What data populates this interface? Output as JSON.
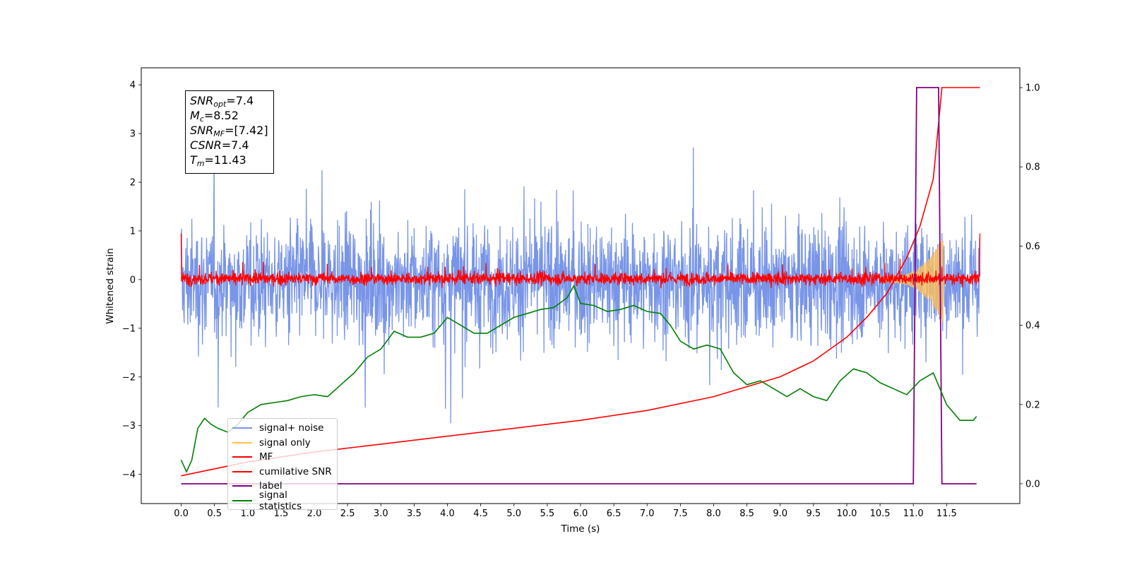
{
  "chart_data": {
    "type": "line",
    "title": "",
    "xlabel": "Time (s)",
    "ylabel": "Whitened strain",
    "y2label": "",
    "xlim": [
      -0.6,
      12.6
    ],
    "ylim": [
      -4.6,
      4.35
    ],
    "y2lim": [
      -0.05,
      1.05
    ],
    "x_ticks": [
      "0.0",
      "0.5",
      "1.0",
      "1.5",
      "2.0",
      "2.5",
      "3.0",
      "3.5",
      "4.0",
      "4.5",
      "5.0",
      "5.5",
      "6.0",
      "6.5",
      "7.0",
      "7.5",
      "8.0",
      "8.5",
      "9.0",
      "9.5",
      "10.0",
      "10.5",
      "11.0",
      "11.5"
    ],
    "x_tick_values": [
      0.0,
      0.5,
      1.0,
      1.5,
      2.0,
      2.5,
      3.0,
      3.5,
      4.0,
      4.5,
      5.0,
      5.5,
      6.0,
      6.5,
      7.0,
      7.5,
      8.0,
      8.5,
      9.0,
      9.5,
      10.0,
      10.5,
      11.0,
      11.5
    ],
    "y_ticks": [
      "4",
      "3",
      "2",
      "1",
      "0",
      "−1",
      "−2",
      "−3",
      "−4"
    ],
    "y_tick_values": [
      4,
      3,
      2,
      1,
      0,
      -1,
      -2,
      -3,
      -4
    ],
    "y2_ticks": [
      "1.0",
      "0.8",
      "0.6",
      "0.4",
      "0.2",
      "0.0"
    ],
    "y2_tick_values": [
      1.0,
      0.8,
      0.6,
      0.4,
      0.2,
      0.0
    ],
    "grid": false,
    "legend_position": "lower-left",
    "annotation": [
      {
        "sym": "SNR",
        "sub": "opt",
        "val": "=7.4"
      },
      {
        "sym": "M",
        "sub": "c",
        "val": "=8.52"
      },
      {
        "sym": "SNR",
        "sub": "MF",
        "val": "=[7.42]"
      },
      {
        "sym": "CSNR",
        "sub": "",
        "val": "=7.4"
      },
      {
        "sym": "T",
        "sub": "m",
        "val": "=11.43"
      }
    ],
    "series": [
      {
        "name": "signal+ noise",
        "color": "#7895e8",
        "axis": "left",
        "description_range": [
          -3.7,
          3.95
        ],
        "x_range": [
          0.0,
          12.0
        ]
      },
      {
        "name": "signal only",
        "color": "#ffbf58",
        "axis": "left",
        "x_range": [
          10.5,
          11.45
        ],
        "peak_amplitude": 0.85
      },
      {
        "name": "MF",
        "color": "#ff0000",
        "axis": "left",
        "x_range": [
          0.0,
          12.0
        ],
        "typical_range": [
          -0.2,
          0.45
        ]
      },
      {
        "name": "cumilative SNR",
        "color": "#ff0000",
        "axis": "right",
        "x": [
          0.0,
          1.0,
          2.0,
          3.0,
          4.0,
          5.0,
          6.0,
          7.0,
          8.0,
          8.5,
          9.0,
          9.5,
          10.0,
          10.3,
          10.6,
          10.9,
          11.1,
          11.3,
          11.43,
          12.0
        ],
        "y": [
          0.02,
          0.055,
          0.08,
          0.1,
          0.12,
          0.14,
          0.16,
          0.185,
          0.22,
          0.245,
          0.27,
          0.31,
          0.37,
          0.42,
          0.48,
          0.57,
          0.65,
          0.77,
          1.0,
          1.0
        ]
      },
      {
        "name": "label",
        "color": "#800080",
        "axis": "right",
        "x": [
          0.0,
          11.0,
          11.05,
          11.38,
          11.43,
          11.95
        ],
        "y": [
          0.0,
          0.0,
          1.0,
          1.0,
          0.0,
          0.0
        ]
      },
      {
        "name": "signal statistics",
        "color": "#008000",
        "axis": "right",
        "x": [
          0.0,
          0.08,
          0.16,
          0.25,
          0.35,
          0.45,
          0.55,
          0.7,
          0.85,
          1.0,
          1.2,
          1.4,
          1.6,
          1.8,
          2.0,
          2.2,
          2.4,
          2.6,
          2.8,
          3.0,
          3.2,
          3.4,
          3.6,
          3.8,
          4.0,
          4.1,
          4.2,
          4.4,
          4.6,
          4.8,
          5.0,
          5.2,
          5.4,
          5.6,
          5.8,
          5.9,
          6.0,
          6.2,
          6.4,
          6.6,
          6.8,
          7.0,
          7.2,
          7.35,
          7.5,
          7.7,
          7.9,
          8.1,
          8.3,
          8.5,
          8.7,
          8.9,
          9.1,
          9.3,
          9.5,
          9.7,
          9.9,
          10.1,
          10.3,
          10.5,
          10.7,
          10.9,
          11.1,
          11.3,
          11.5,
          11.7,
          11.9,
          11.95
        ],
        "y": [
          0.06,
          0.03,
          0.06,
          0.14,
          0.165,
          0.15,
          0.14,
          0.13,
          0.15,
          0.18,
          0.2,
          0.205,
          0.21,
          0.22,
          0.225,
          0.22,
          0.25,
          0.28,
          0.32,
          0.34,
          0.385,
          0.37,
          0.37,
          0.38,
          0.42,
          0.41,
          0.4,
          0.38,
          0.38,
          0.4,
          0.42,
          0.43,
          0.44,
          0.445,
          0.47,
          0.5,
          0.455,
          0.45,
          0.435,
          0.44,
          0.45,
          0.435,
          0.43,
          0.4,
          0.36,
          0.34,
          0.35,
          0.34,
          0.28,
          0.25,
          0.26,
          0.24,
          0.22,
          0.24,
          0.22,
          0.21,
          0.26,
          0.29,
          0.28,
          0.255,
          0.24,
          0.225,
          0.26,
          0.28,
          0.2,
          0.16,
          0.16,
          0.17
        ]
      }
    ]
  }
}
